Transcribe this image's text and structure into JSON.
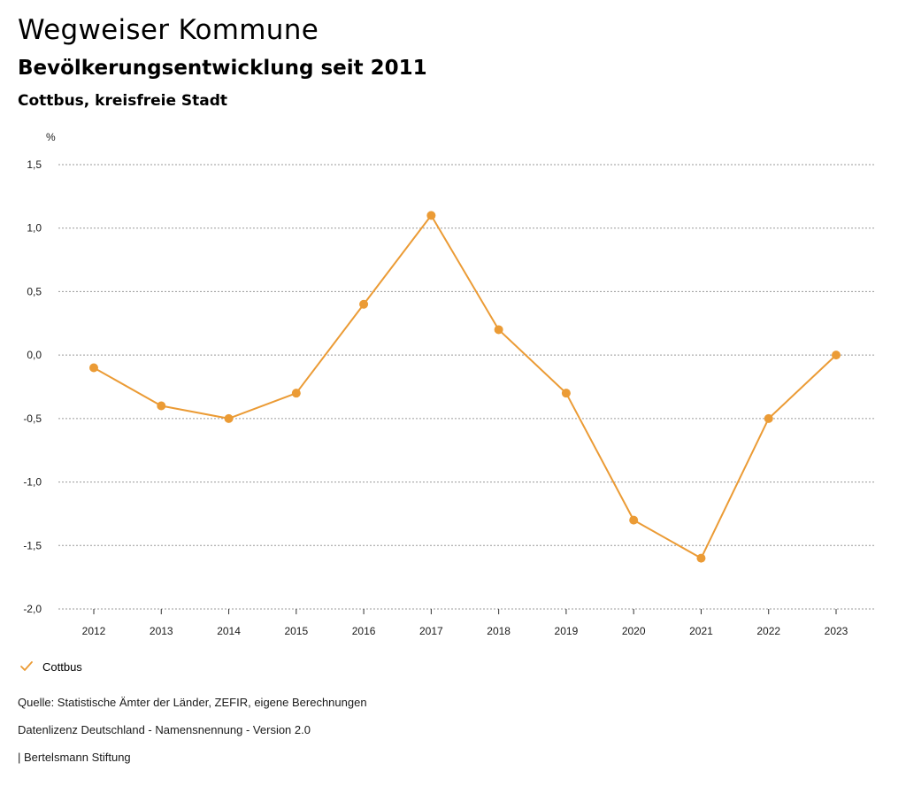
{
  "header": {
    "title": "Wegweiser Kommune",
    "subtitle": "Bevölkerungsentwicklung seit 2011",
    "region": "Cottbus, kreisfreie Stadt"
  },
  "colors": {
    "series": "#EB9B35",
    "grid": "#9a9a9a",
    "axis": "#333333"
  },
  "chart_data": {
    "type": "line",
    "title": "Bevölkerungsentwicklung seit 2011",
    "ylabel": "%",
    "xlabel": "",
    "ylim": [
      -2.0,
      1.5
    ],
    "yticks": [
      1.5,
      1.0,
      0.5,
      0.0,
      -0.5,
      -1.0,
      -1.5,
      -2.0
    ],
    "ytick_labels": [
      "1,5",
      "1,0",
      "0,5",
      "0,0",
      "-0,5",
      "-1,0",
      "-1,5",
      "-2,0"
    ],
    "grid": true,
    "categories": [
      "2012",
      "2013",
      "2014",
      "2015",
      "2016",
      "2017",
      "2018",
      "2019",
      "2020",
      "2021",
      "2022",
      "2023"
    ],
    "series": [
      {
        "name": "Cottbus",
        "values": [
          -0.1,
          -0.4,
          -0.5,
          -0.3,
          0.4,
          1.1,
          0.2,
          -0.3,
          -1.3,
          -1.6,
          -0.5,
          0.0
        ]
      }
    ],
    "legend_position": "bottom-left"
  },
  "footer": {
    "source": "Quelle: Statistische Ämter der Länder, ZEFIR, eigene Berechnungen",
    "license": "Datenlizenz Deutschland - Namensnennung - Version 2.0",
    "publisher": "| Bertelsmann Stiftung"
  }
}
